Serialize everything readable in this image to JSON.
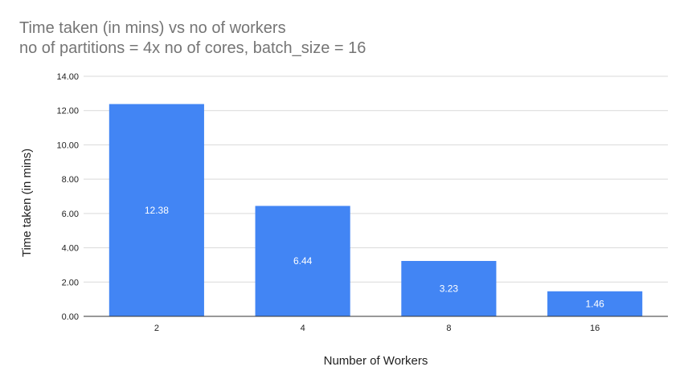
{
  "chart_data": {
    "type": "bar",
    "title": "Time taken (in mins) vs no of workers",
    "subtitle": "no of partitions = 4x no of cores, batch_size = 16",
    "xlabel": "Number of Workers",
    "ylabel": "Time taken (in mins)",
    "categories": [
      "2",
      "4",
      "8",
      "16"
    ],
    "values": [
      12.38,
      6.44,
      3.23,
      1.46
    ],
    "data_labels": [
      "12.38",
      "6.44",
      "3.23",
      "1.46"
    ],
    "ylim": [
      0,
      14
    ],
    "yticks": [
      "0.00",
      "2.00",
      "4.00",
      "6.00",
      "8.00",
      "10.00",
      "12.00",
      "14.00"
    ],
    "grid": true,
    "legend": "none",
    "colors": {
      "bar": "#4285f4",
      "grid": "#d9d9d9",
      "axis": "#333333"
    }
  }
}
